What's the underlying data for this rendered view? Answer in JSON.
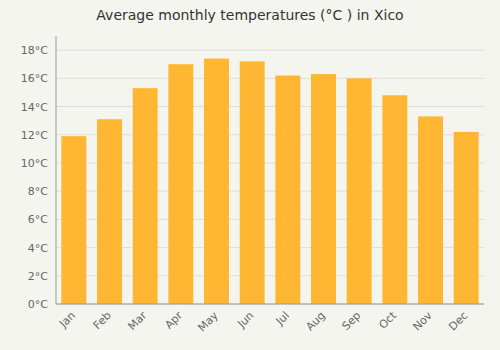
{
  "chart_data": {
    "type": "bar",
    "title": "Average monthly temperatures (°C ) in Xico",
    "categories": [
      "Jan",
      "Feb",
      "Mar",
      "Apr",
      "May",
      "Jun",
      "Jul",
      "Aug",
      "Sep",
      "Oct",
      "Nov",
      "Dec"
    ],
    "values": [
      11.9,
      13.1,
      15.3,
      17.0,
      17.4,
      17.2,
      16.2,
      16.3,
      16.0,
      14.8,
      13.3,
      12.2
    ],
    "color": "#FFB733",
    "ylim": [
      0,
      19
    ],
    "yticks": [
      {
        "value": 0,
        "label": "0°C"
      },
      {
        "value": 2,
        "label": "2°C"
      },
      {
        "value": 4,
        "label": "4°C"
      },
      {
        "value": 6,
        "label": "6°C"
      },
      {
        "value": 8,
        "label": "8°C"
      },
      {
        "value": 10,
        "label": "10°C"
      },
      {
        "value": 12,
        "label": "12°C"
      },
      {
        "value": 14,
        "label": "14°C"
      },
      {
        "value": 16,
        "label": "16°C"
      },
      {
        "value": 18,
        "label": "18°C"
      }
    ],
    "grid": true
  }
}
